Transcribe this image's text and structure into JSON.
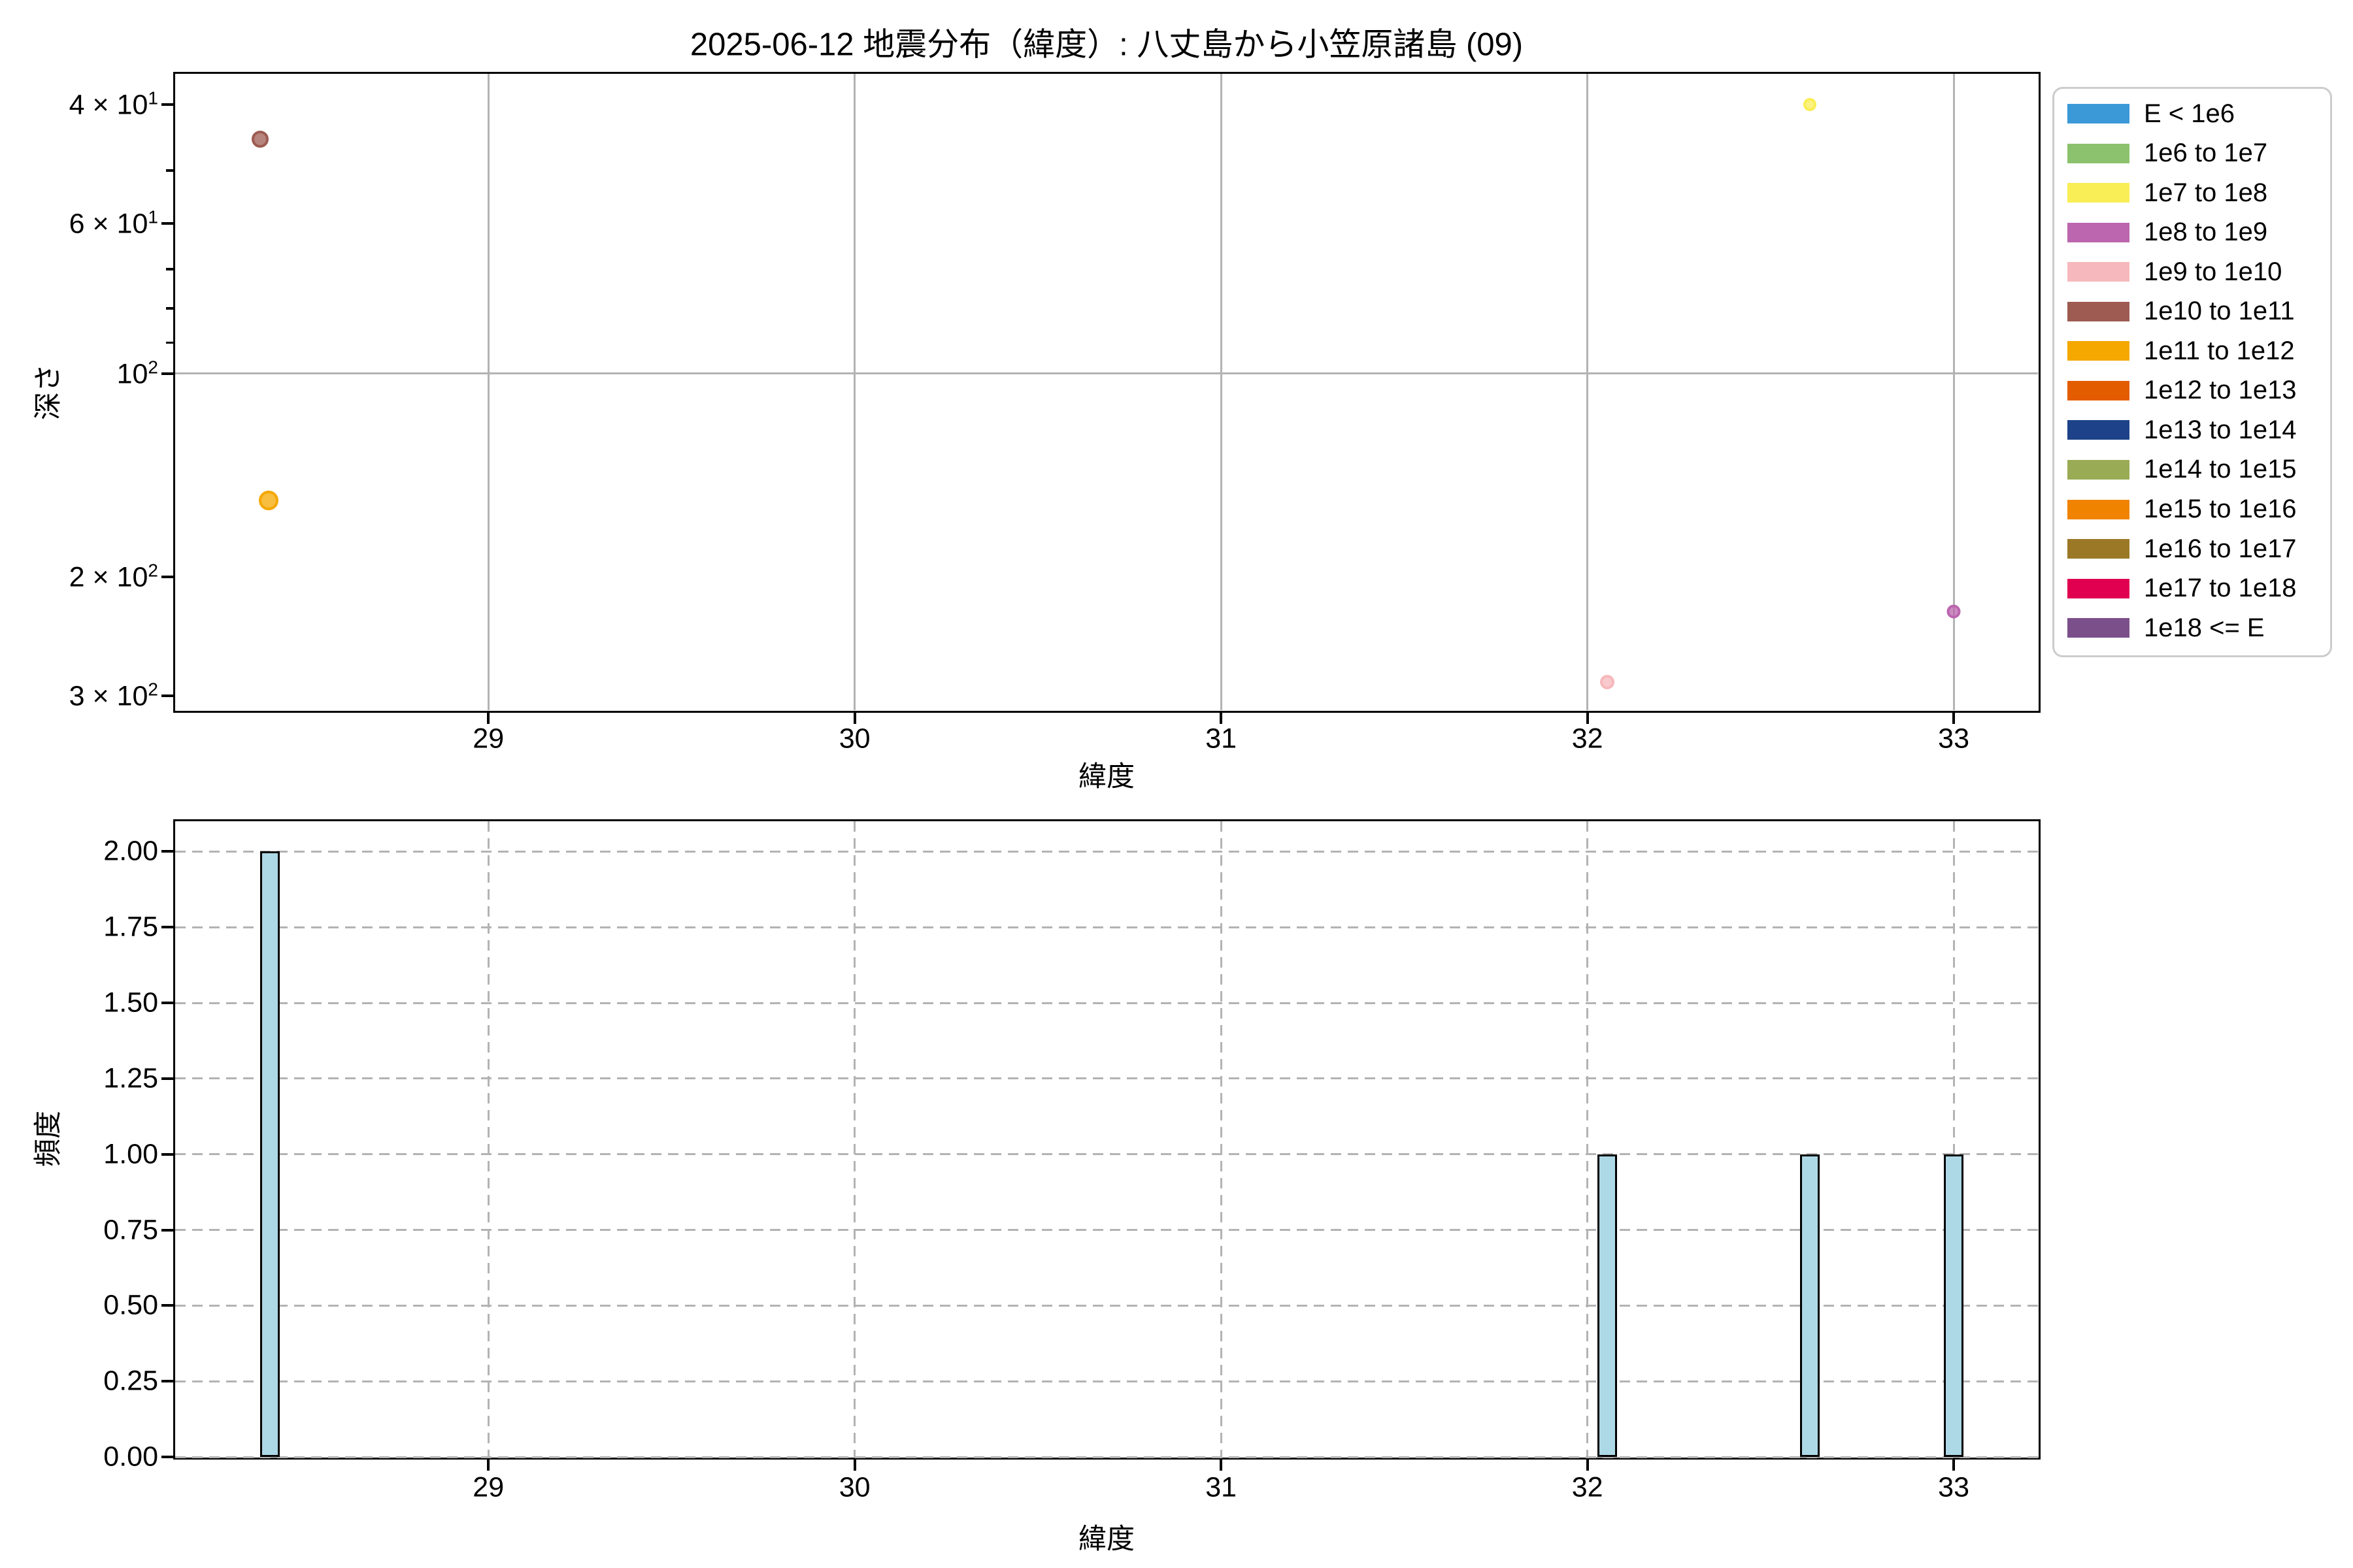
{
  "title": "2025-06-12 地震分布（緯度）: 八丈島から小笠原諸島 (09)",
  "legend": {
    "items": [
      {
        "label": "E < 1e6",
        "color": "#3B99D8"
      },
      {
        "label": "1e6 to 1e7",
        "color": "#8CC26D"
      },
      {
        "label": "1e7 to 1e8",
        "color": "#F9EE55"
      },
      {
        "label": "1e8 to 1e9",
        "color": "#BB66AE"
      },
      {
        "label": "1e9 to 1e10",
        "color": "#F6B8BC"
      },
      {
        "label": "1e10 to 1e11",
        "color": "#9D5B52"
      },
      {
        "label": "1e11 to 1e12",
        "color": "#F4A800"
      },
      {
        "label": "1e12 to 1e13",
        "color": "#E45C00"
      },
      {
        "label": "1e13 to 1e14",
        "color": "#1D4289"
      },
      {
        "label": "1e14 to 1e15",
        "color": "#9AAB55"
      },
      {
        "label": "1e15 to 1e16",
        "color": "#F08300"
      },
      {
        "label": "1e16 to 1e17",
        "color": "#9A7826"
      },
      {
        "label": "1e17 to 1e18",
        "color": "#E0004F"
      },
      {
        "label": "1e18 <= E",
        "color": "#7B4F89"
      }
    ]
  },
  "chart_data": [
    {
      "type": "scatter",
      "title": "2025-06-12 地震分布（緯度）: 八丈島から小笠原諸島 (09)",
      "xlabel": "緯度",
      "ylabel": "深さ",
      "x_ticks": [
        29,
        30,
        31,
        32,
        33
      ],
      "xlim": [
        28.145,
        33.23
      ],
      "y_scale": "log-inverted",
      "ylim": [
        36,
        315
      ],
      "y_ticks": [
        {
          "label": "4 × 10^1",
          "value": 40
        },
        {
          "label": "6 × 10^1",
          "value": 60
        },
        {
          "label": "10^2",
          "value": 100
        },
        {
          "label": "2 × 10^2",
          "value": 200
        },
        {
          "label": "3 × 10^2",
          "value": 300
        }
      ],
      "y_minor_ticks": [
        50,
        70,
        80,
        90
      ],
      "grid": "solid major gridlines",
      "points": [
        {
          "lat": 28.377,
          "depth": 45,
          "energy": "1e10 to 1e11",
          "size": 13
        },
        {
          "lat": 28.401,
          "depth": 154,
          "energy": "1e11 to 1e12",
          "size": 15
        },
        {
          "lat": 32.055,
          "depth": 286,
          "energy": "1e9 to 1e10",
          "size": 11
        },
        {
          "lat": 32.607,
          "depth": 40,
          "energy": "1e7 to 1e8",
          "size": 10
        },
        {
          "lat": 33.0,
          "depth": 225,
          "energy": "1e8 to 1e9",
          "size": 10.5
        }
      ]
    },
    {
      "type": "histogram",
      "xlabel": "緯度",
      "ylabel": "頻度",
      "x_ticks": [
        29,
        30,
        31,
        32,
        33
      ],
      "xlim": [
        28.145,
        33.23
      ],
      "ylim": [
        0,
        2.1
      ],
      "y_ticks": [
        "0.00",
        "0.25",
        "0.50",
        "0.75",
        "1.00",
        "1.25",
        "1.50",
        "1.75",
        "2.00"
      ],
      "grid": "dashed gridlines",
      "bar_color": "#ADD8E6",
      "bar_width_deg": 0.0535,
      "bars": [
        {
          "lat": 28.403,
          "count": 2
        },
        {
          "lat": 32.055,
          "count": 1
        },
        {
          "lat": 32.607,
          "count": 1
        },
        {
          "lat": 33.0,
          "count": 1
        }
      ]
    }
  ]
}
